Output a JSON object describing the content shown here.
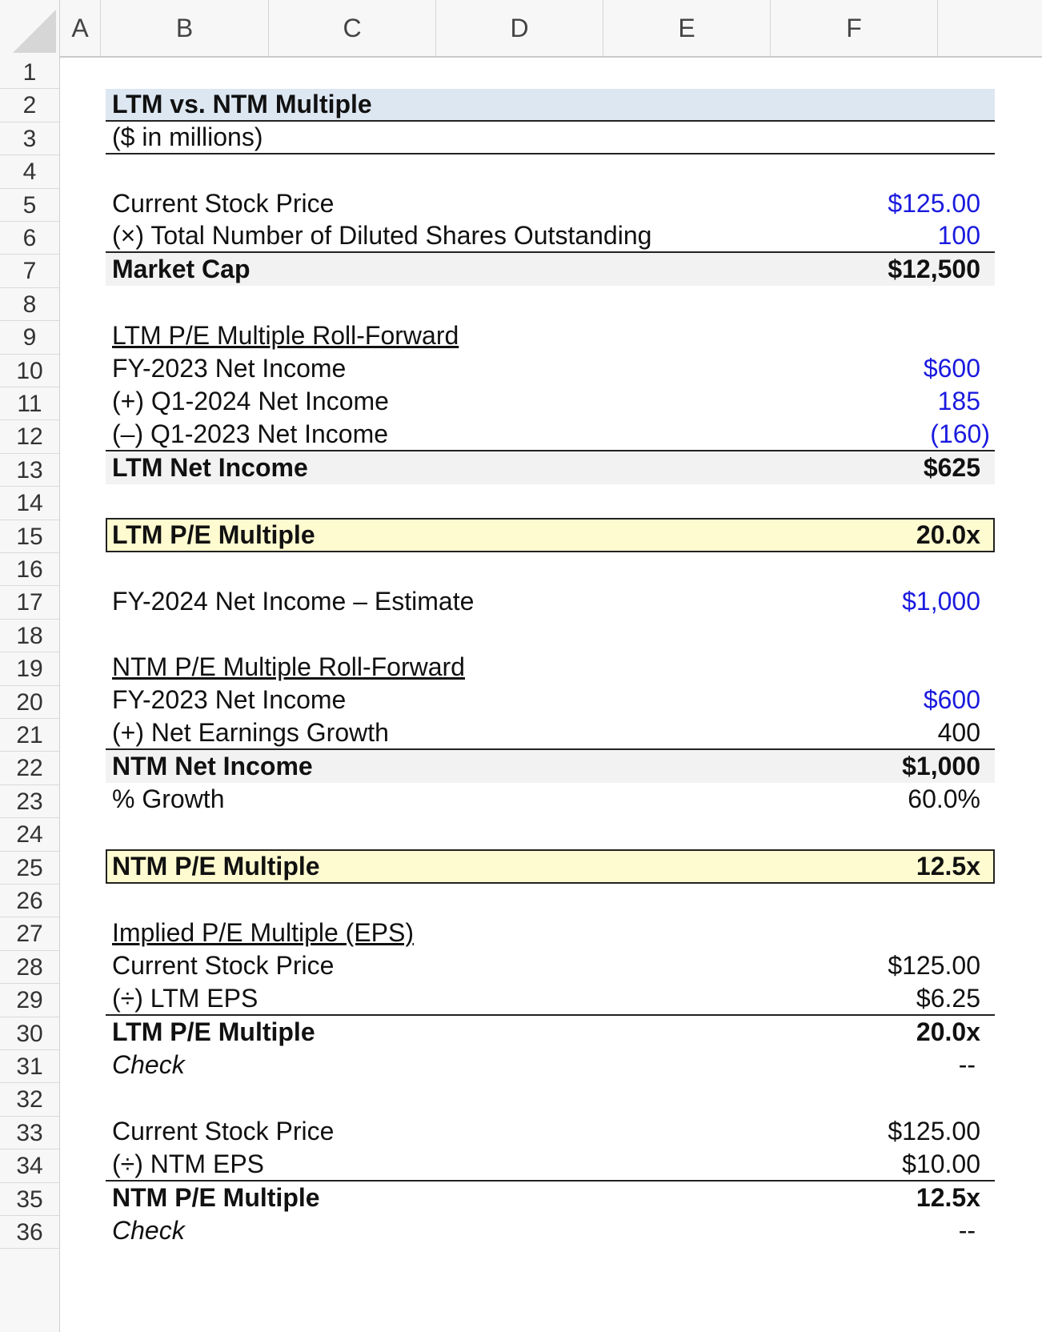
{
  "columns": [
    "A",
    "B",
    "C",
    "D",
    "E",
    "F"
  ],
  "row_numbers": [
    "1",
    "2",
    "3",
    "4",
    "5",
    "6",
    "7",
    "8",
    "9",
    "10",
    "11",
    "12",
    "13",
    "14",
    "15",
    "16",
    "17",
    "18",
    "19",
    "20",
    "21",
    "22",
    "23",
    "24",
    "25",
    "26",
    "27",
    "28",
    "29",
    "30",
    "31",
    "32",
    "33",
    "34",
    "35",
    "36"
  ],
  "rows": {
    "r2": {
      "label": "LTM vs. NTM Multiple"
    },
    "r3": {
      "label": "($ in millions)"
    },
    "r5": {
      "label": "Current Stock Price",
      "value": "$125.00"
    },
    "r6": {
      "label": "(×) Total Number of Diluted Shares Outstanding",
      "value": "100"
    },
    "r7": {
      "label": "Market Cap",
      "value": "$12,500"
    },
    "r9": {
      "label": "LTM P/E Multiple Roll-Forward"
    },
    "r10": {
      "label": "FY-2023 Net Income",
      "value": "$600"
    },
    "r11": {
      "label": "(+) Q1-2024 Net Income",
      "value": "185"
    },
    "r12": {
      "label": "(–) Q1-2023 Net Income",
      "value": "(160)"
    },
    "r13": {
      "label": "LTM Net Income",
      "value": "$625"
    },
    "r15": {
      "label": "LTM P/E Multiple",
      "value": "20.0x"
    },
    "r17": {
      "label": "FY-2024 Net Income – Estimate",
      "value": "$1,000"
    },
    "r19": {
      "label": "NTM P/E Multiple Roll-Forward"
    },
    "r20": {
      "label": "FY-2023 Net Income",
      "value": "$600"
    },
    "r21": {
      "label": "(+) Net Earnings Growth",
      "value": "400"
    },
    "r22": {
      "label": "NTM Net Income",
      "value": "$1,000"
    },
    "r23": {
      "label": "% Growth",
      "value": "60.0%"
    },
    "r25": {
      "label": "NTM P/E Multiple",
      "value": "12.5x"
    },
    "r27": {
      "label": "Implied P/E Multiple (EPS)"
    },
    "r28": {
      "label": "Current Stock Price",
      "value": "$125.00"
    },
    "r29": {
      "label": "(÷) LTM EPS",
      "value": "$6.25"
    },
    "r30": {
      "label": "LTM P/E Multiple",
      "value": "20.0x"
    },
    "r31": {
      "label": "Check",
      "value": "--"
    },
    "r33": {
      "label": "Current Stock Price",
      "value": "$125.00"
    },
    "r34": {
      "label": "(÷) NTM EPS",
      "value": "$10.00"
    },
    "r35": {
      "label": "NTM P/E Multiple",
      "value": "12.5x"
    },
    "r36": {
      "label": "Check",
      "value": "--"
    }
  },
  "colors": {
    "input_blue": "#1a1adf",
    "title_fill": "#dde7f2",
    "total_fill": "#f2f2f2",
    "highlight_fill": "#fffbd0"
  }
}
